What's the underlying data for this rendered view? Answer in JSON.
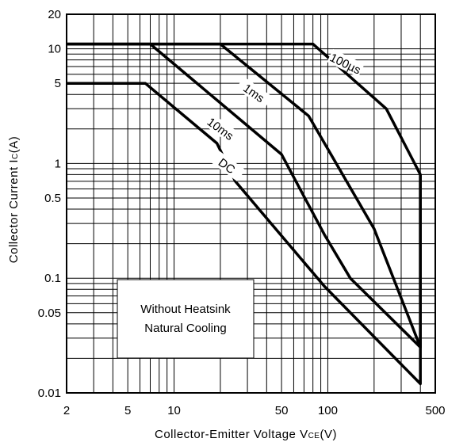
{
  "chart_data": {
    "type": "line",
    "xscale": "log",
    "yscale": "log",
    "xlim": [
      2,
      500
    ],
    "ylim": [
      0.01,
      20
    ],
    "grid": true,
    "xlabel": "Collector-Emitter Voltage V",
    "xlabel_sub": "CE",
    "xlabel_unit": "(V)",
    "ylabel": "Collector Current I",
    "ylabel_sub": "C",
    "ylabel_unit": "(A)",
    "xticks": [
      {
        "value": 2,
        "label": "2"
      },
      {
        "value": 5,
        "label": "5"
      },
      {
        "value": 10,
        "label": "10"
      },
      {
        "value": 50,
        "label": "50"
      },
      {
        "value": 100,
        "label": "100"
      },
      {
        "value": 500,
        "label": "500"
      }
    ],
    "yticks": [
      {
        "value": 0.01,
        "label": "0.01"
      },
      {
        "value": 0.05,
        "label": "0.05"
      },
      {
        "value": 0.1,
        "label": "0.1"
      },
      {
        "value": 0.5,
        "label": "0.5"
      },
      {
        "value": 1,
        "label": "1"
      },
      {
        "value": 5,
        "label": "5"
      },
      {
        "value": 10,
        "label": "10"
      },
      {
        "value": 20,
        "label": "20"
      }
    ],
    "series": [
      {
        "name": "100µs",
        "x": [
          2,
          80,
          240,
          400,
          400
        ],
        "y": [
          11,
          11,
          3,
          0.8,
          0.065
        ]
      },
      {
        "name": "1ms",
        "x": [
          2,
          20,
          75,
          200,
          400,
          400
        ],
        "y": [
          11,
          11,
          2.6,
          0.27,
          0.025,
          0.8
        ]
      },
      {
        "name": "10ms",
        "x": [
          2,
          7,
          50,
          95,
          140,
          400,
          400
        ],
        "y": [
          11,
          11,
          1.2,
          0.24,
          0.1,
          0.025,
          0.8
        ]
      },
      {
        "name": "DC",
        "x": [
          2,
          6.5,
          19,
          25,
          95,
          400,
          400
        ],
        "y": [
          5,
          5,
          1.5,
          0.7,
          0.085,
          0.012,
          0.8
        ]
      }
    ],
    "annotation": [
      "Without Heatsink",
      "Natural Cooling"
    ]
  }
}
